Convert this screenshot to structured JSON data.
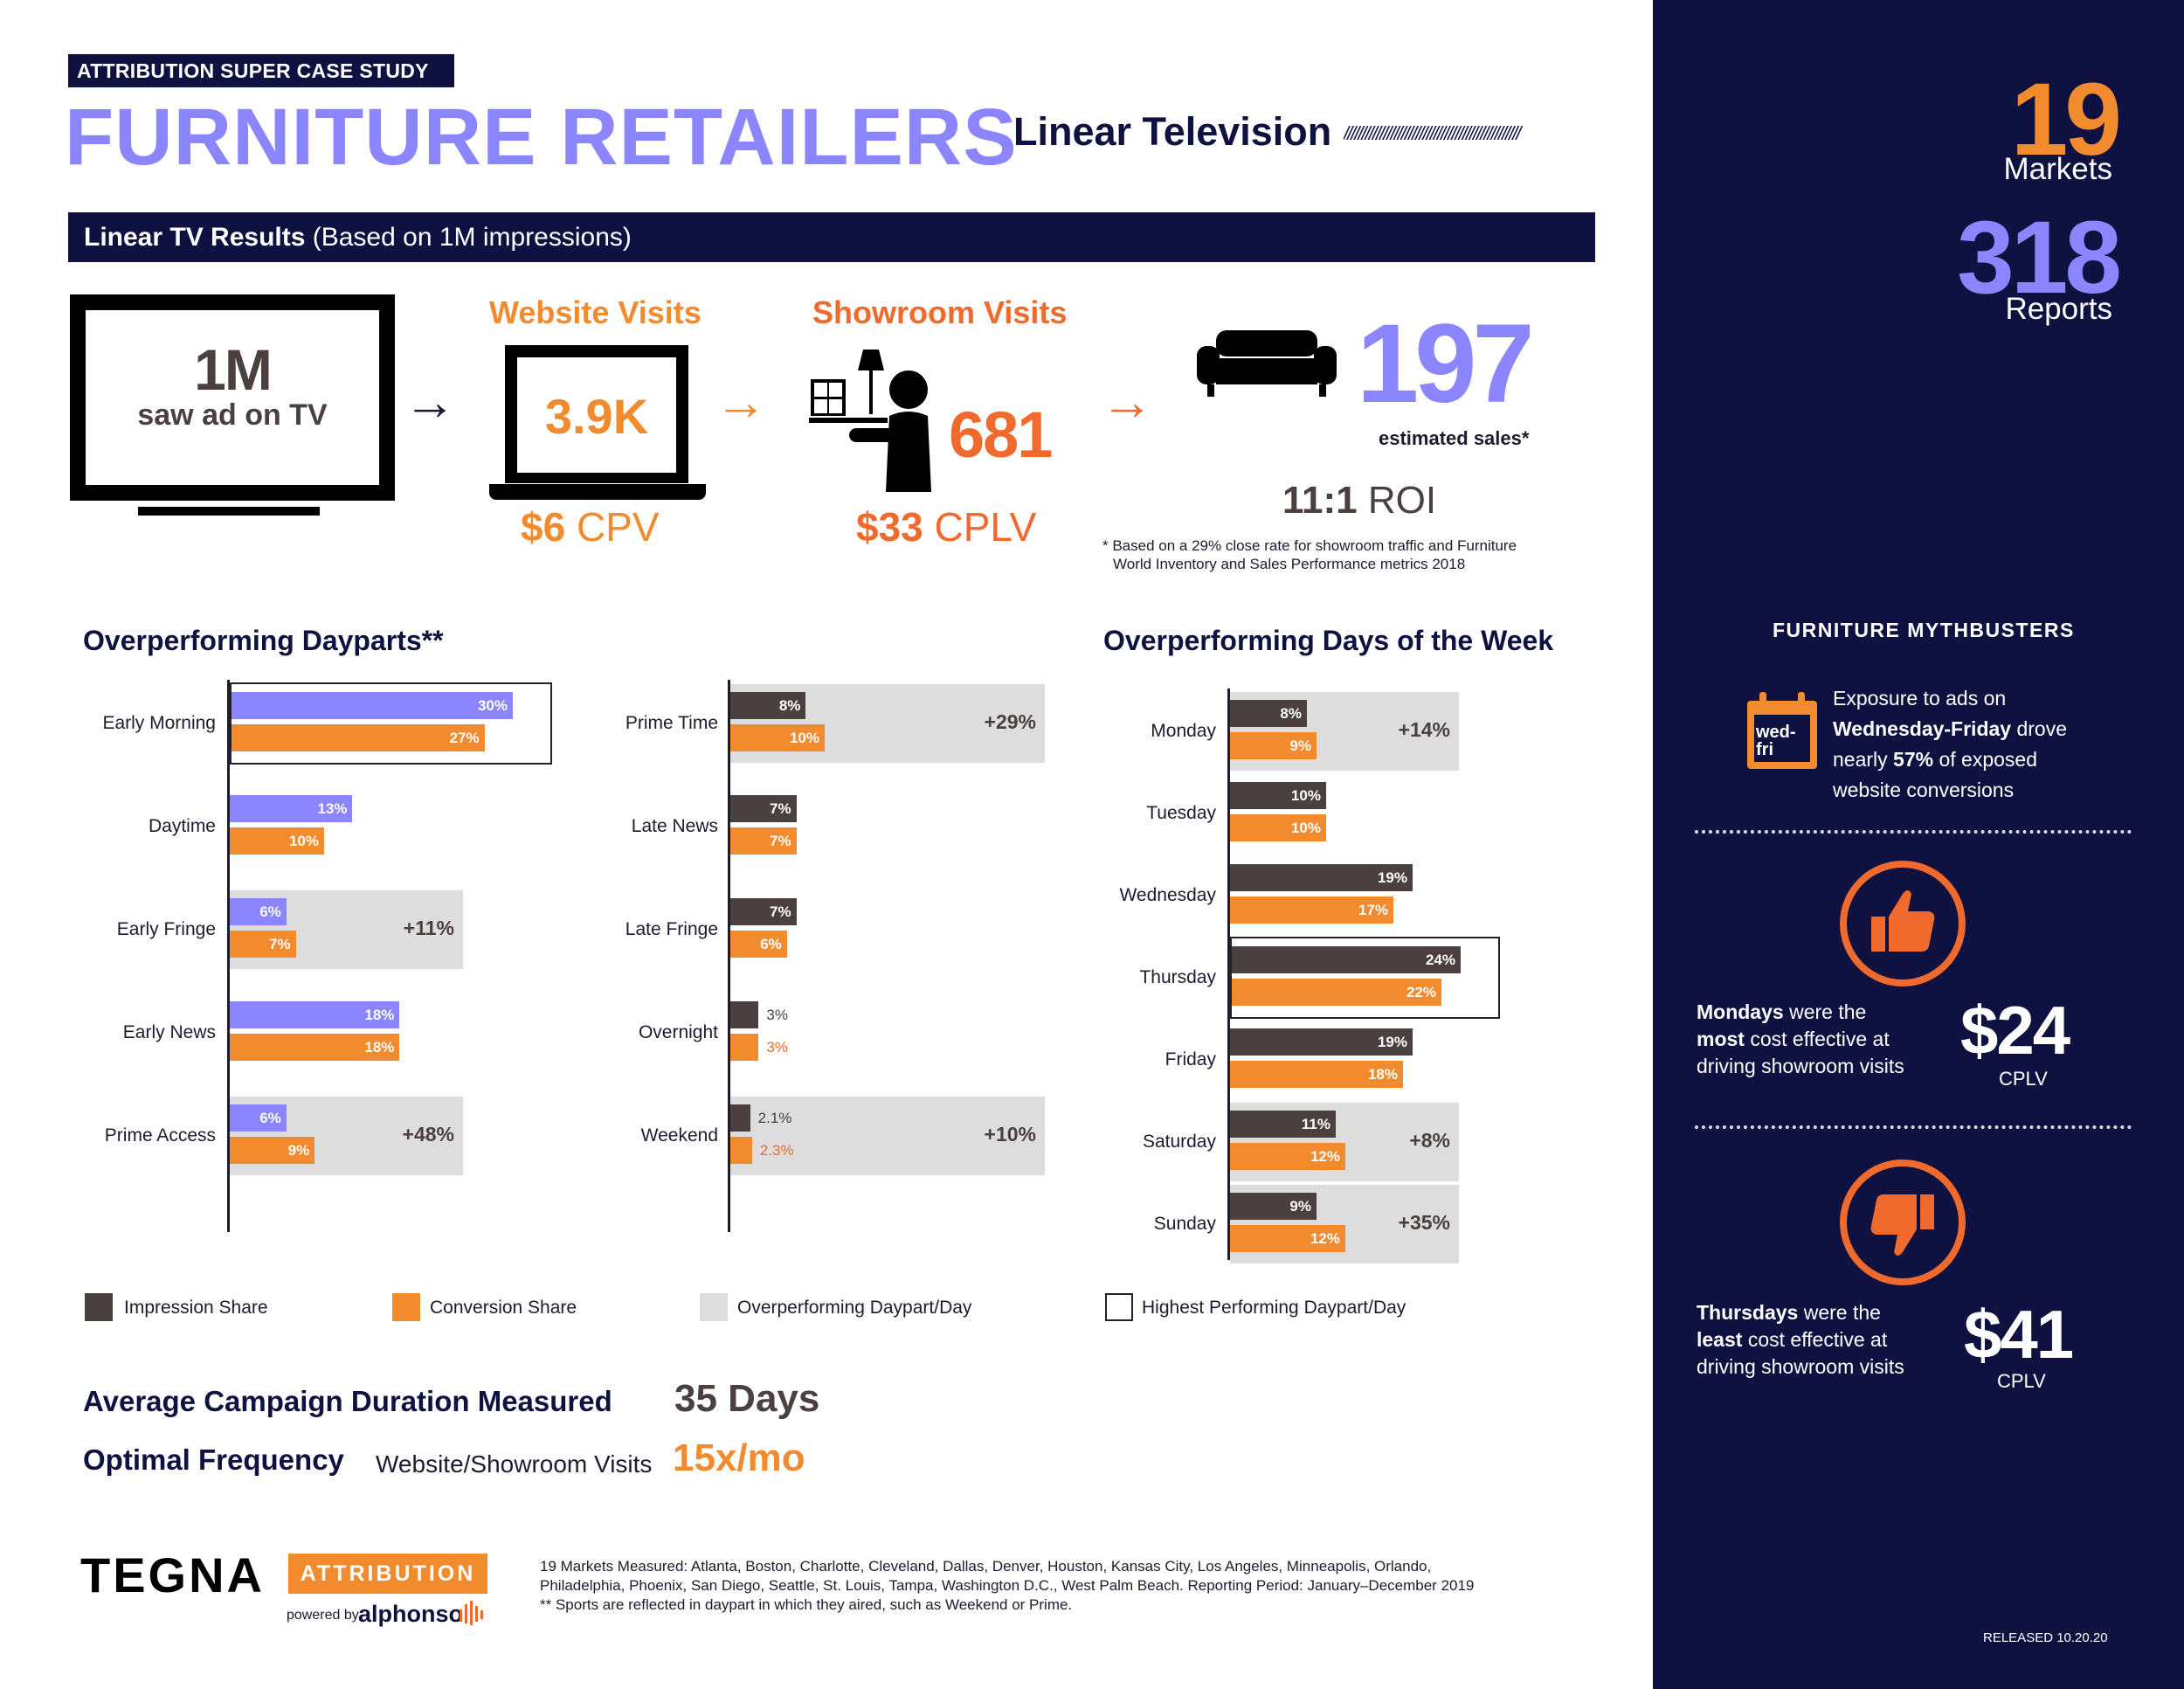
{
  "header": {
    "kicker": "ATTRIBUTION SUPER CASE STUDY",
    "title": "FURNITURE RETAILERS",
    "subtitle": "Linear Television",
    "slashes": "/////////////////////////////////////////////////"
  },
  "results": {
    "bar_bold": "Linear TV Results",
    "bar_rest": " (Based on 1M impressions)",
    "tv_value": "1M",
    "tv_caption": "saw ad on TV",
    "website_title": "Website Visits",
    "website_value": "3.9K",
    "website_cost_value": "$6",
    "website_cost_unit": " CPV",
    "showroom_title": "Showroom Visits",
    "showroom_value": "681",
    "showroom_cost_value": "$33",
    "showroom_cost_unit": " CPLV",
    "sales_value": "197",
    "sales_caption": "estimated sales*",
    "roi_value": "11:1",
    "roi_unit": " ROI",
    "footnote_1": "* Based on a 29% close rate for showroom traffic and Furniture",
    "footnote_2": "World Inventory and Sales Performance metrics 2018",
    "arrow": "→"
  },
  "sidebar": {
    "markets_value": "19",
    "markets_label": "Markets",
    "reports_value": "318",
    "reports_label": "Reports",
    "mythbusters_title": "FURNITURE MYTHBUSTERS",
    "calendar_text_1": "wed-",
    "calendar_text_2": "fri",
    "myth1_line1": "Exposure to ads on",
    "myth1_line2_bold": "Wednesday-Friday",
    "myth1_line2_rest": " drove",
    "myth1_line3_pre": "nearly ",
    "myth1_line3_bold": "57%",
    "myth1_line3_rest": " of exposed",
    "myth1_line4": "website conversions",
    "myth2_line1_bold": "Mondays",
    "myth2_line1_rest": " were the",
    "myth2_line2_bold": "most",
    "myth2_line2_rest": " cost effective at",
    "myth2_line3": "driving showroom visits",
    "myth2_price": "$24",
    "myth2_price_label": "CPLV",
    "myth3_line1_bold": "Thursdays",
    "myth3_line1_rest": " were the",
    "myth3_line2_bold": "least",
    "myth3_line2_rest": " cost effective at",
    "myth3_line3": "driving showroom visits",
    "myth3_price": "$41",
    "myth3_price_label": "CPLV",
    "released": "RELEASED 10.20.20"
  },
  "legend": {
    "impression": "Impression Share",
    "conversion": "Conversion Share",
    "overperforming": "Overperforming Daypart/Day",
    "highest": "Highest Performing Daypart/Day"
  },
  "summary": {
    "duration_label": "Average Campaign Duration Measured",
    "duration_value": "35 Days",
    "frequency_label": "Optimal Frequency",
    "frequency_sub": "Website/Showroom Visits",
    "frequency_value": "15x/mo"
  },
  "footer": {
    "brand": "TEGNA",
    "brand_tag": "ATTRIBUTION",
    "powered_by": "powered by",
    "partner": "alphonso",
    "markets_note_1": "19 Markets Measured: Atlanta, Boston, Charlotte, Cleveland, Dallas, Denver, Houston, Kansas City, Los Angeles, Minneapolis, Orlando,",
    "markets_note_2": "Philadelphia, Phoenix, San Diego, Seattle, St. Louis, Tampa, Washington D.C., West Palm Beach. Reporting Period: January–December 2019",
    "markets_note_3": "** Sports are reflected in daypart in which they aired, such as Weekend or Prime."
  },
  "colors": {
    "navy": "#0f1240",
    "purple": "#8b85ff",
    "orange": "#f28a2e",
    "orange_red": "#ef6a2c",
    "impression": "#4a4040",
    "overperforming_bg": "#dddddd"
  },
  "chart_data": [
    {
      "type": "bar",
      "orientation": "horizontal",
      "title": "Overperforming Dayparts**",
      "categories": [
        "Early Morning",
        "Daytime",
        "Early Fringe",
        "Early News",
        "Prime Access"
      ],
      "series": [
        {
          "name": "Impression Share",
          "values": [
            30,
            13,
            6,
            18,
            6
          ],
          "labels": [
            "30%",
            "13%",
            "6%",
            "18%",
            "6%"
          ]
        },
        {
          "name": "Conversion Share",
          "values": [
            27,
            10,
            7,
            18,
            9
          ],
          "labels": [
            "27%",
            "10%",
            "7%",
            "18%",
            "9%"
          ]
        }
      ],
      "overperforming": [
        false,
        false,
        true,
        false,
        true
      ],
      "uplift": [
        "",
        "",
        "+11%",
        "",
        "+48%"
      ],
      "highest": [
        true,
        false,
        false,
        false,
        false
      ],
      "xlim": [
        0,
        40
      ]
    },
    {
      "type": "bar",
      "orientation": "horizontal",
      "title": "",
      "categories": [
        "Prime Time",
        "Late News",
        "Late Fringe",
        "Overnight",
        "Weekend"
      ],
      "series": [
        {
          "name": "Impression Share",
          "values": [
            8,
            7,
            7,
            3,
            2.1
          ],
          "labels": [
            "8%",
            "7%",
            "7%",
            "3%",
            "2.1%"
          ]
        },
        {
          "name": "Conversion Share",
          "values": [
            10,
            7,
            6,
            3,
            2.3
          ],
          "labels": [
            "10%",
            "7%",
            "6%",
            "3%",
            "2.3%"
          ]
        }
      ],
      "overperforming": [
        true,
        false,
        false,
        false,
        true
      ],
      "uplift": [
        "+29%",
        "",
        "",
        "",
        "+10%"
      ],
      "highest": [
        false,
        false,
        false,
        false,
        false
      ],
      "xlim": [
        0,
        40
      ]
    },
    {
      "type": "bar",
      "orientation": "horizontal",
      "title": "Overperforming Days of the Week",
      "categories": [
        "Monday",
        "Tuesday",
        "Wednesday",
        "Thursday",
        "Friday",
        "Saturday",
        "Sunday"
      ],
      "series": [
        {
          "name": "Impression Share",
          "values": [
            8,
            10,
            19,
            24,
            19,
            11,
            9
          ],
          "labels": [
            "8%",
            "10%",
            "19%",
            "24%",
            "19%",
            "11%",
            "9%"
          ]
        },
        {
          "name": "Conversion Share",
          "values": [
            9,
            10,
            17,
            22,
            18,
            12,
            12
          ],
          "labels": [
            "9%",
            "10%",
            "17%",
            "22%",
            "18%",
            "12%",
            "12%"
          ]
        }
      ],
      "overperforming": [
        true,
        false,
        false,
        false,
        false,
        true,
        true
      ],
      "uplift": [
        "+14%",
        "",
        "",
        "",
        "",
        "+8%",
        "+35%"
      ],
      "highest": [
        false,
        false,
        false,
        true,
        false,
        false,
        false
      ],
      "xlim": [
        0,
        28
      ]
    }
  ]
}
